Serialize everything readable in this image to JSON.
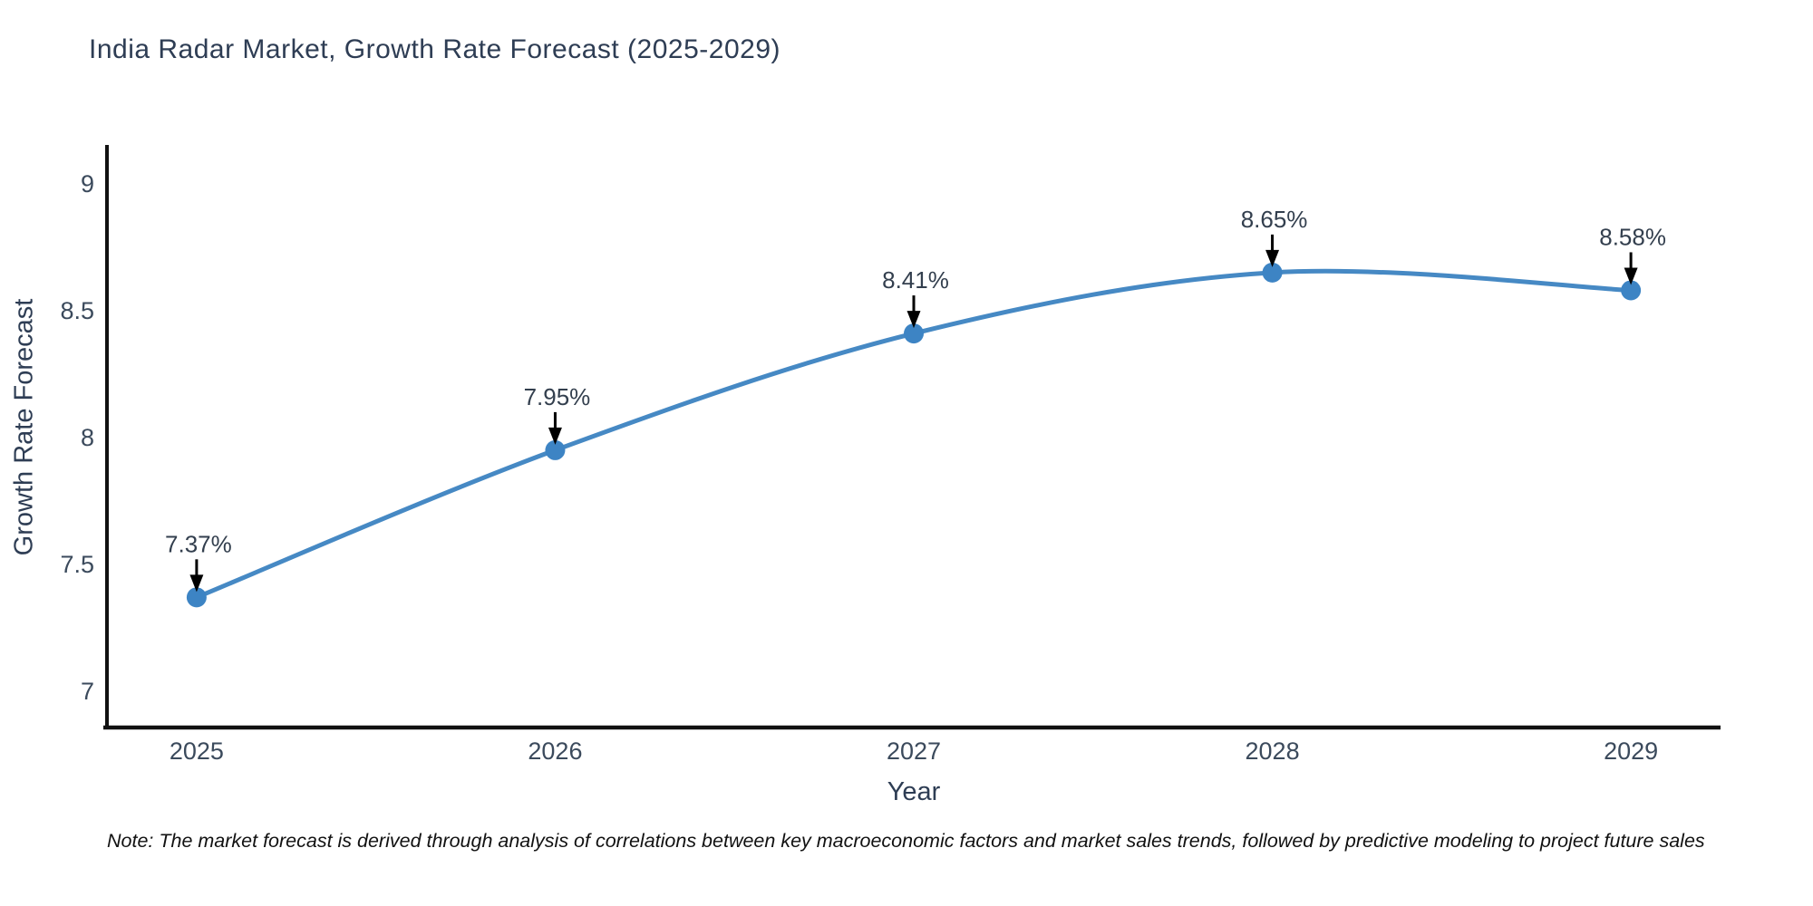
{
  "chart": {
    "title": "India Radar Market, Growth Rate Forecast (2025-2029)",
    "xlabel": "Year",
    "ylabel": "Growth Rate Forecast"
  },
  "note": "Note: The market forecast is derived through analysis of correlations between key macroeconomic factors and market sales trends, followed by predictive modeling to project future sales",
  "chart_data": {
    "type": "line",
    "title": "India Radar Market, Growth Rate Forecast (2025-2029)",
    "xlabel": "Year",
    "ylabel": "Growth Rate Forecast",
    "x": [
      2025,
      2026,
      2027,
      2028,
      2029
    ],
    "xticks": [
      "2025",
      "2026",
      "2027",
      "2028",
      "2029"
    ],
    "yticks": [
      7,
      7.5,
      8,
      8.5,
      9
    ],
    "xlim": [
      2024.75,
      2029.25
    ],
    "ylim": [
      6.857,
      9.153
    ],
    "grid": false,
    "legend": false,
    "line_shape": "spline",
    "series": [
      {
        "name": "Growth Rate Forecast",
        "values": [
          7.37,
          7.95,
          8.41,
          8.65,
          8.58
        ]
      }
    ],
    "point_labels": [
      "7.37%",
      "7.95%",
      "8.41%",
      "8.65%",
      "8.58%"
    ],
    "colors": {
      "line": "#4689c4",
      "marker": "#3d84c4",
      "axis": "#111111",
      "tick_text": "#3b4a5c",
      "annotation_text": "#333f4e",
      "arrow": "#000000",
      "background": "#ffffff"
    }
  }
}
